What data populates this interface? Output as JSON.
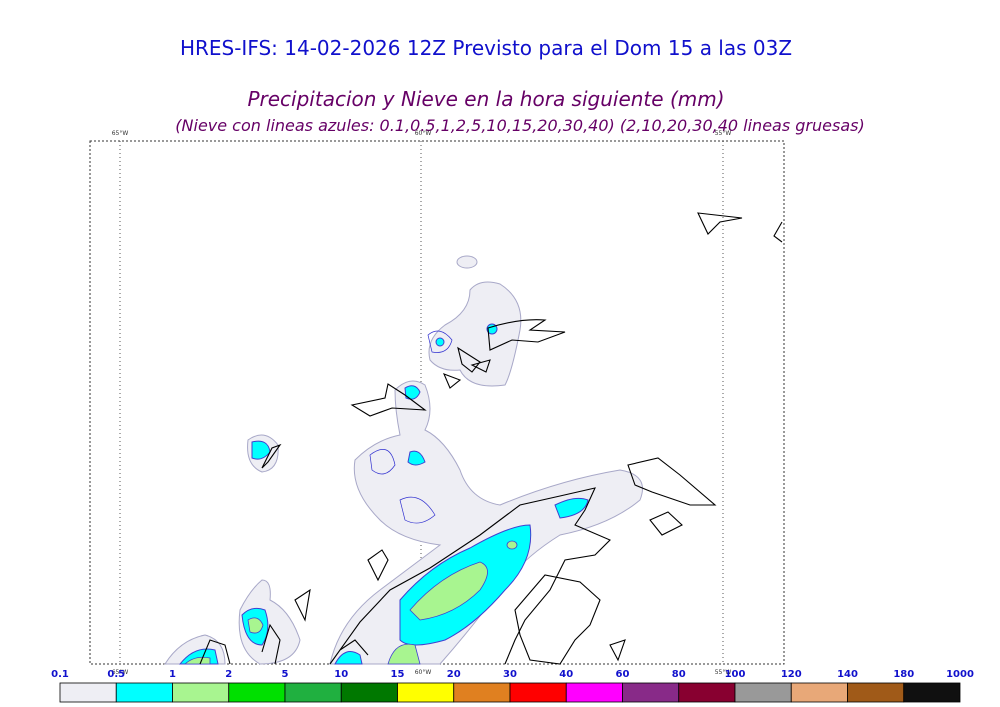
{
  "header": {
    "title": "HRES-IFS: 14-02-2026 12Z Previsto para el Dom 15 a las 03Z",
    "subtitle": "Precipitacion y Nieve en la hora siguiente (mm)",
    "note": "(Nieve con lineas azules: 0.1,0.5,1,2,5,10,15,20,30,40)  (2,10,20,30,40 lineas gruesas)"
  },
  "map": {
    "meridians": [
      "65°W",
      "60°W",
      "55°W"
    ]
  },
  "colorbar": {
    "labels": [
      "0.1",
      "0.5",
      "1",
      "2",
      "5",
      "10",
      "15",
      "20",
      "30",
      "40",
      "60",
      "80",
      "100",
      "120",
      "140",
      "180",
      "1000"
    ],
    "colors": [
      "#eeeef4",
      "#00ffff",
      "#a8f590",
      "#00e000",
      "#20b040",
      "#007800",
      "#ffff00",
      "#e08020",
      "#ff0000",
      "#ff00ff",
      "#882a88",
      "#880030",
      "#999999",
      "#e8a878",
      "#a05a18",
      "#101010"
    ]
  }
}
